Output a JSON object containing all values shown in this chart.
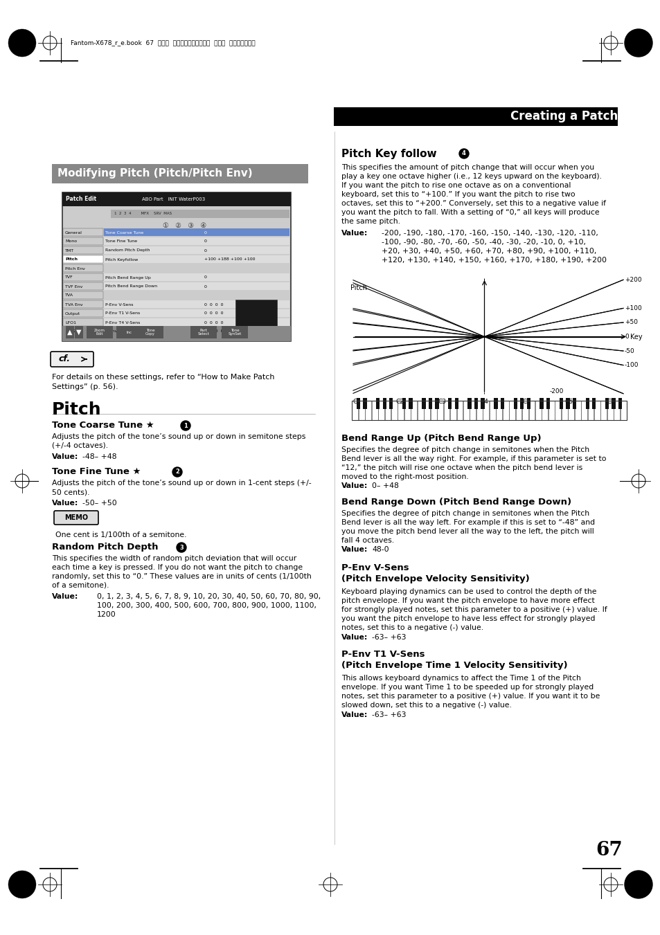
{
  "page_bg": "#ffffff",
  "title_box_text": "Creating a Patch",
  "section_title": "Modifying Pitch (Pitch/Pitch Env)",
  "pitch_section_title": "Pitch",
  "pitch_key_follow_title": "Pitch Key follow",
  "pitch_key_follow_body1": "This specifies the amount of pitch change that will occur when you",
  "pitch_key_follow_body2": "play a key one octave higher (i.e., 12 keys upward on the keyboard).",
  "pitch_key_follow_body3": "If you want the pitch to rise one octave as on a conventional",
  "pitch_key_follow_body4": "keyboard, set this to “+100.” If you want the pitch to rise two",
  "pitch_key_follow_body5": "octaves, set this to “+200.” Conversely, set this to a negative value if",
  "pitch_key_follow_body6": "you want the pitch to fall. With a setting of “0,” all keys will produce",
  "pitch_key_follow_body7": "the same pitch.",
  "pitch_key_follow_val1": "-200, -190, -180, -170, -160, -150, -140, -130, -120, -110,",
  "pitch_key_follow_val2": "-100, -90, -80, -70, -60, -50, -40, -30, -20, -10, 0, +10,",
  "pitch_key_follow_val3": "+20, +30, +40, +50, +60, +70, +80, +90, +100, +110,",
  "pitch_key_follow_val4": "+120, +130, +140, +150, +160, +170, +180, +190, +200",
  "tone_coarse_title": "Tone Coarse Tune ★",
  "tone_coarse_body1": "Adjusts the pitch of the tone’s sound up or down in semitone steps",
  "tone_coarse_body2": "(+/-4 octaves).",
  "tone_coarse_value": "-48– +48",
  "tone_fine_title": "Tone Fine Tune ★",
  "tone_fine_body1": "Adjusts the pitch of the tone’s sound up or down in 1-cent steps (+/-",
  "tone_fine_body2": "50 cents).",
  "tone_fine_value": "-50– +50",
  "memo_text": "One cent is 1/100th of a semitone.",
  "random_pitch_title": "Random Pitch Depth",
  "random_pitch_body1": "This specifies the width of random pitch deviation that will occur",
  "random_pitch_body2": "each time a key is pressed. If you do not want the pitch to change",
  "random_pitch_body3": "randomly, set this to “0.” These values are in units of cents (1/100th",
  "random_pitch_body4": "of a semitone).",
  "random_pitch_val1": "0, 1, 2, 3, 4, 5, 6, 7, 8, 9, 10, 20, 30, 40, 50, 60, 70, 80, 90,",
  "random_pitch_val2": "100, 200, 300, 400, 500, 600, 700, 800, 900, 1000, 1100,",
  "random_pitch_val3": "1200",
  "cf_text1": "For details on these settings, refer to “How to Make Patch",
  "cf_text2": "Settings” (p. 56).",
  "bend_range_up_title": "Bend Range Up (Pitch Bend Range Up)",
  "bend_range_up_body1": "Specifies the degree of pitch change in semitones when the Pitch",
  "bend_range_up_body2": "Bend lever is all the way right. For example, if this parameter is set to",
  "bend_range_up_body3": "“12,” the pitch will rise one octave when the pitch bend lever is",
  "bend_range_up_body4": "moved to the right-most position.",
  "bend_range_up_value": "0– +48",
  "bend_range_down_title": "Bend Range Down (Pitch Bend Range Down)",
  "bend_range_down_body1": "Specifies the degree of pitch change in semitones when the Pitch",
  "bend_range_down_body2": "Bend lever is all the way left. For example if this is set to “-48” and",
  "bend_range_down_body3": "you move the pitch bend lever all the way to the left, the pitch will",
  "bend_range_down_body4": "fall 4 octaves.",
  "bend_range_down_value": "48-0",
  "p_env_vsens_title1": "P-Env V-Sens",
  "p_env_vsens_title2": "(Pitch Envelope Velocity Sensitivity)",
  "p_env_vsens_body1": "Keyboard playing dynamics can be used to control the depth of the",
  "p_env_vsens_body2": "pitch envelope. If you want the pitch envelope to have more effect",
  "p_env_vsens_body3": "for strongly played notes, set this parameter to a positive (+) value. If",
  "p_env_vsens_body4": "you want the pitch envelope to have less effect for strongly played",
  "p_env_vsens_body5": "notes, set this to a negative (-) value.",
  "p_env_vsens_value": "-63– +63",
  "p_env_t1vsens_title1": "P-Env T1 V-Sens",
  "p_env_t1vsens_title2": "(Pitch Envelope Time 1 Velocity Sensitivity)",
  "p_env_t1vsens_body1": "This allows keyboard dynamics to affect the Time 1 of the Pitch",
  "p_env_t1vsens_body2": "envelope. If you want Time 1 to be speeded up for strongly played",
  "p_env_t1vsens_body3": "notes, set this parameter to a positive (+) value. If you want it to be",
  "p_env_t1vsens_body4": "slowed down, set this to a negative (-) value.",
  "p_env_t1vsens_value": "-63– +63",
  "page_number": "67"
}
